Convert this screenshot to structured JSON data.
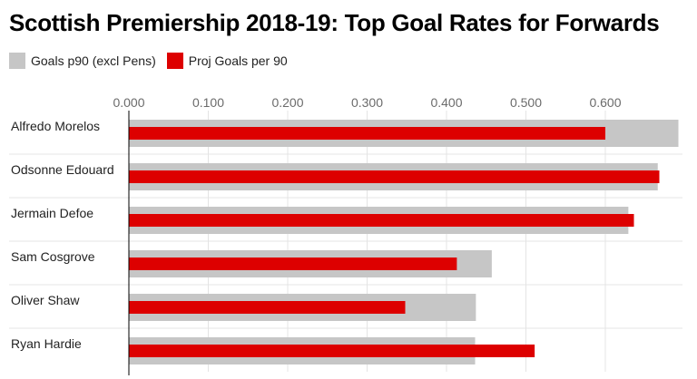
{
  "chart_data": {
    "type": "bar",
    "orientation": "horizontal",
    "title": "Scottish Premiership 2018-19: Top Goal Rates for Forwards",
    "xlabel": "",
    "ylabel": "",
    "xlim": [
      0,
      0.7
    ],
    "x_ticks": [
      0,
      0.1,
      0.2,
      0.3,
      0.4,
      0.5,
      0.6
    ],
    "x_tick_labels": [
      "0.000",
      "0.100",
      "0.200",
      "0.300",
      "0.400",
      "0.500",
      "0.600"
    ],
    "categories": [
      "Alfredo Morelos",
      "Odsonne Edouard",
      "Jermain Defoe",
      "Sam Cosgrove",
      "Oliver Shaw",
      "Ryan Hardie"
    ],
    "series": [
      {
        "name": "Goals p90 (excl Pens)",
        "color": "#c6c6c6",
        "values": [
          0.692,
          0.666,
          0.629,
          0.457,
          0.437,
          0.436
        ]
      },
      {
        "name": "Proj Goals per 90",
        "color": "#dd0000",
        "values": [
          0.6,
          0.668,
          0.636,
          0.413,
          0.348,
          0.511
        ]
      }
    ],
    "legend_position": "top-left",
    "grid": true,
    "axis_position": "top"
  }
}
